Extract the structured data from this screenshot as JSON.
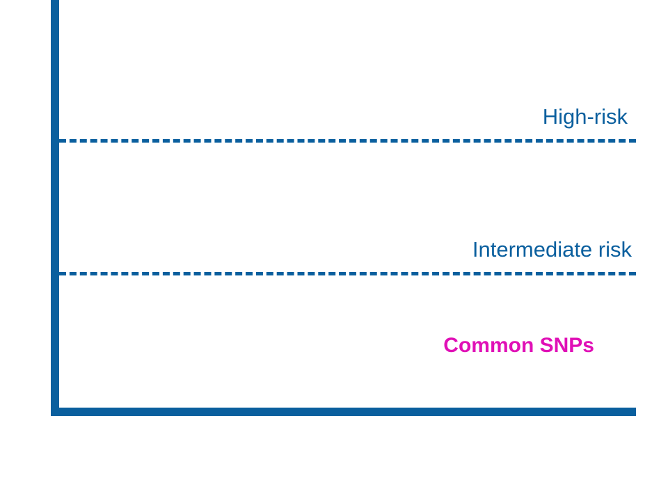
{
  "diagram": {
    "levels": [
      {
        "label": "High-risk"
      },
      {
        "label": "Intermediate risk"
      }
    ],
    "region_label": "Common SNPs",
    "colors": {
      "axis": "#0a5f9e",
      "threshold": "#0a5f9e",
      "level_text": "#0a5f9e",
      "region_text": "#e010b6"
    }
  }
}
